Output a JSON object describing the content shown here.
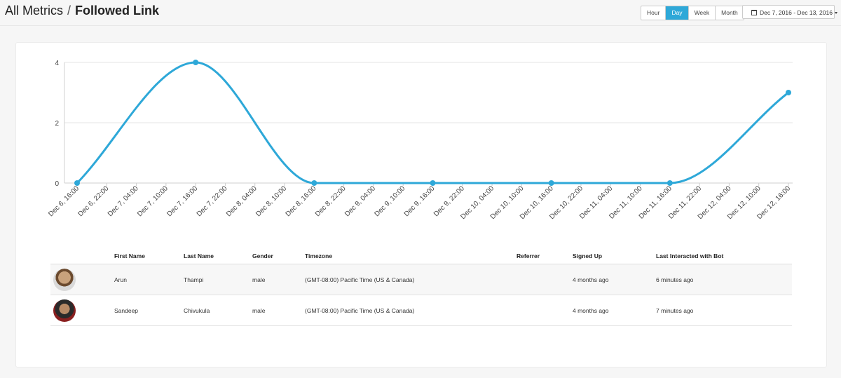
{
  "breadcrumb": {
    "parent": "All Metrics",
    "separator": "/",
    "current": "Followed Link"
  },
  "granularity": {
    "options": [
      "Hour",
      "Day",
      "Week",
      "Month"
    ],
    "selected": "Day"
  },
  "date_range": {
    "label": "Dec 7, 2016 - Dec 13, 2016"
  },
  "colors": {
    "accent": "#2ea8d8"
  },
  "chart_data": {
    "type": "line",
    "x": [
      "Dec 6, 16:00",
      "Dec 6, 22:00",
      "Dec 7, 04:00",
      "Dec 7, 10:00",
      "Dec 7, 16:00",
      "Dec 7, 22:00",
      "Dec 8, 04:00",
      "Dec 8, 10:00",
      "Dec 8, 16:00",
      "Dec 8, 22:00",
      "Dec 9, 04:00",
      "Dec 9, 10:00",
      "Dec 9, 16:00",
      "Dec 9, 22:00",
      "Dec 10, 04:00",
      "Dec 10, 10:00",
      "Dec 10, 16:00",
      "Dec 10, 22:00",
      "Dec 11, 04:00",
      "Dec 11, 10:00",
      "Dec 11, 16:00",
      "Dec 11, 22:00",
      "Dec 12, 04:00",
      "Dec 12, 10:00",
      "Dec 12, 16:00"
    ],
    "points": [
      {
        "x": "Dec 6, 16:00",
        "y": 0
      },
      {
        "x": "Dec 7, 16:00",
        "y": 4
      },
      {
        "x": "Dec 8, 16:00",
        "y": 0
      },
      {
        "x": "Dec 9, 16:00",
        "y": 0
      },
      {
        "x": "Dec 10, 16:00",
        "y": 0
      },
      {
        "x": "Dec 11, 16:00",
        "y": 0
      },
      {
        "x": "Dec 12, 16:00",
        "y": 3
      }
    ],
    "yticks": [
      0,
      2,
      4
    ],
    "ylim": [
      0,
      4
    ],
    "grid": true,
    "title": "",
    "xlabel": "",
    "ylabel": ""
  },
  "table": {
    "columns": [
      "",
      "First Name",
      "Last Name",
      "Gender",
      "Timezone",
      "Referrer",
      "Signed Up",
      "Last Interacted with Bot"
    ],
    "rows": [
      {
        "first": "Arun",
        "last": "Thampi",
        "gender": "male",
        "timezone": "(GMT-08:00) Pacific Time (US & Canada)",
        "referrer": "",
        "signed_up": "4 months ago",
        "last_interacted": "6 minutes ago"
      },
      {
        "first": "Sandeep",
        "last": "Chivukula",
        "gender": "male",
        "timezone": "(GMT-08:00) Pacific Time (US & Canada)",
        "referrer": "",
        "signed_up": "4 months ago",
        "last_interacted": "7 minutes ago"
      }
    ]
  }
}
